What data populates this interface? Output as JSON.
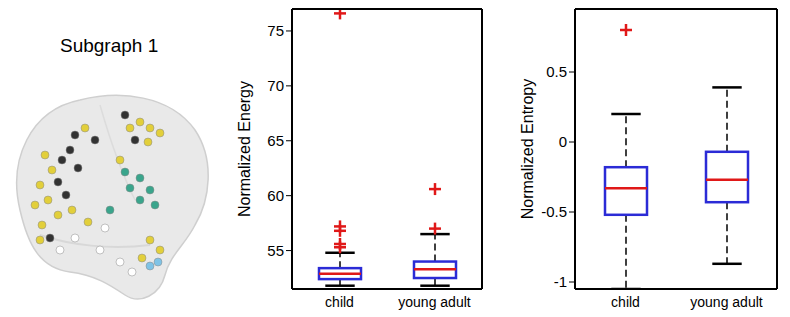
{
  "chart_data": [
    {
      "type": "brain",
      "title": "Subgraph 1"
    },
    {
      "type": "box",
      "ylabel": "Normalized Energy",
      "categories": [
        "child",
        "young adult"
      ],
      "ylim": [
        51.5,
        77
      ],
      "yticks": [
        55,
        60,
        65,
        70,
        75
      ],
      "color": "#2b2bd6",
      "boxes": [
        {
          "whisker_low": 51.8,
          "q1": 52.4,
          "median": 52.9,
          "q3": 53.4,
          "whisker_high": 54.8,
          "outliers": [
            55.3,
            55.6,
            56.8,
            57.2,
            76.6
          ]
        },
        {
          "whisker_low": 51.8,
          "q1": 52.5,
          "median": 53.3,
          "q3": 54.0,
          "whisker_high": 56.5,
          "outliers": [
            57.0,
            60.6
          ]
        }
      ]
    },
    {
      "type": "box",
      "ylabel": "Normalized Entropy",
      "categories": [
        "child",
        "young adult"
      ],
      "ylim": [
        -1.05,
        0.95
      ],
      "yticks": [
        -1,
        -0.5,
        0,
        0.5
      ],
      "color": "#2b2bd6",
      "boxes": [
        {
          "whisker_low": -1.05,
          "q1": -0.52,
          "median": -0.33,
          "q3": -0.18,
          "whisker_high": 0.2,
          "outliers": [
            0.8
          ]
        },
        {
          "whisker_low": -0.87,
          "q1": -0.43,
          "median": -0.27,
          "q3": -0.07,
          "whisker_high": 0.39,
          "outliers": []
        }
      ]
    }
  ]
}
